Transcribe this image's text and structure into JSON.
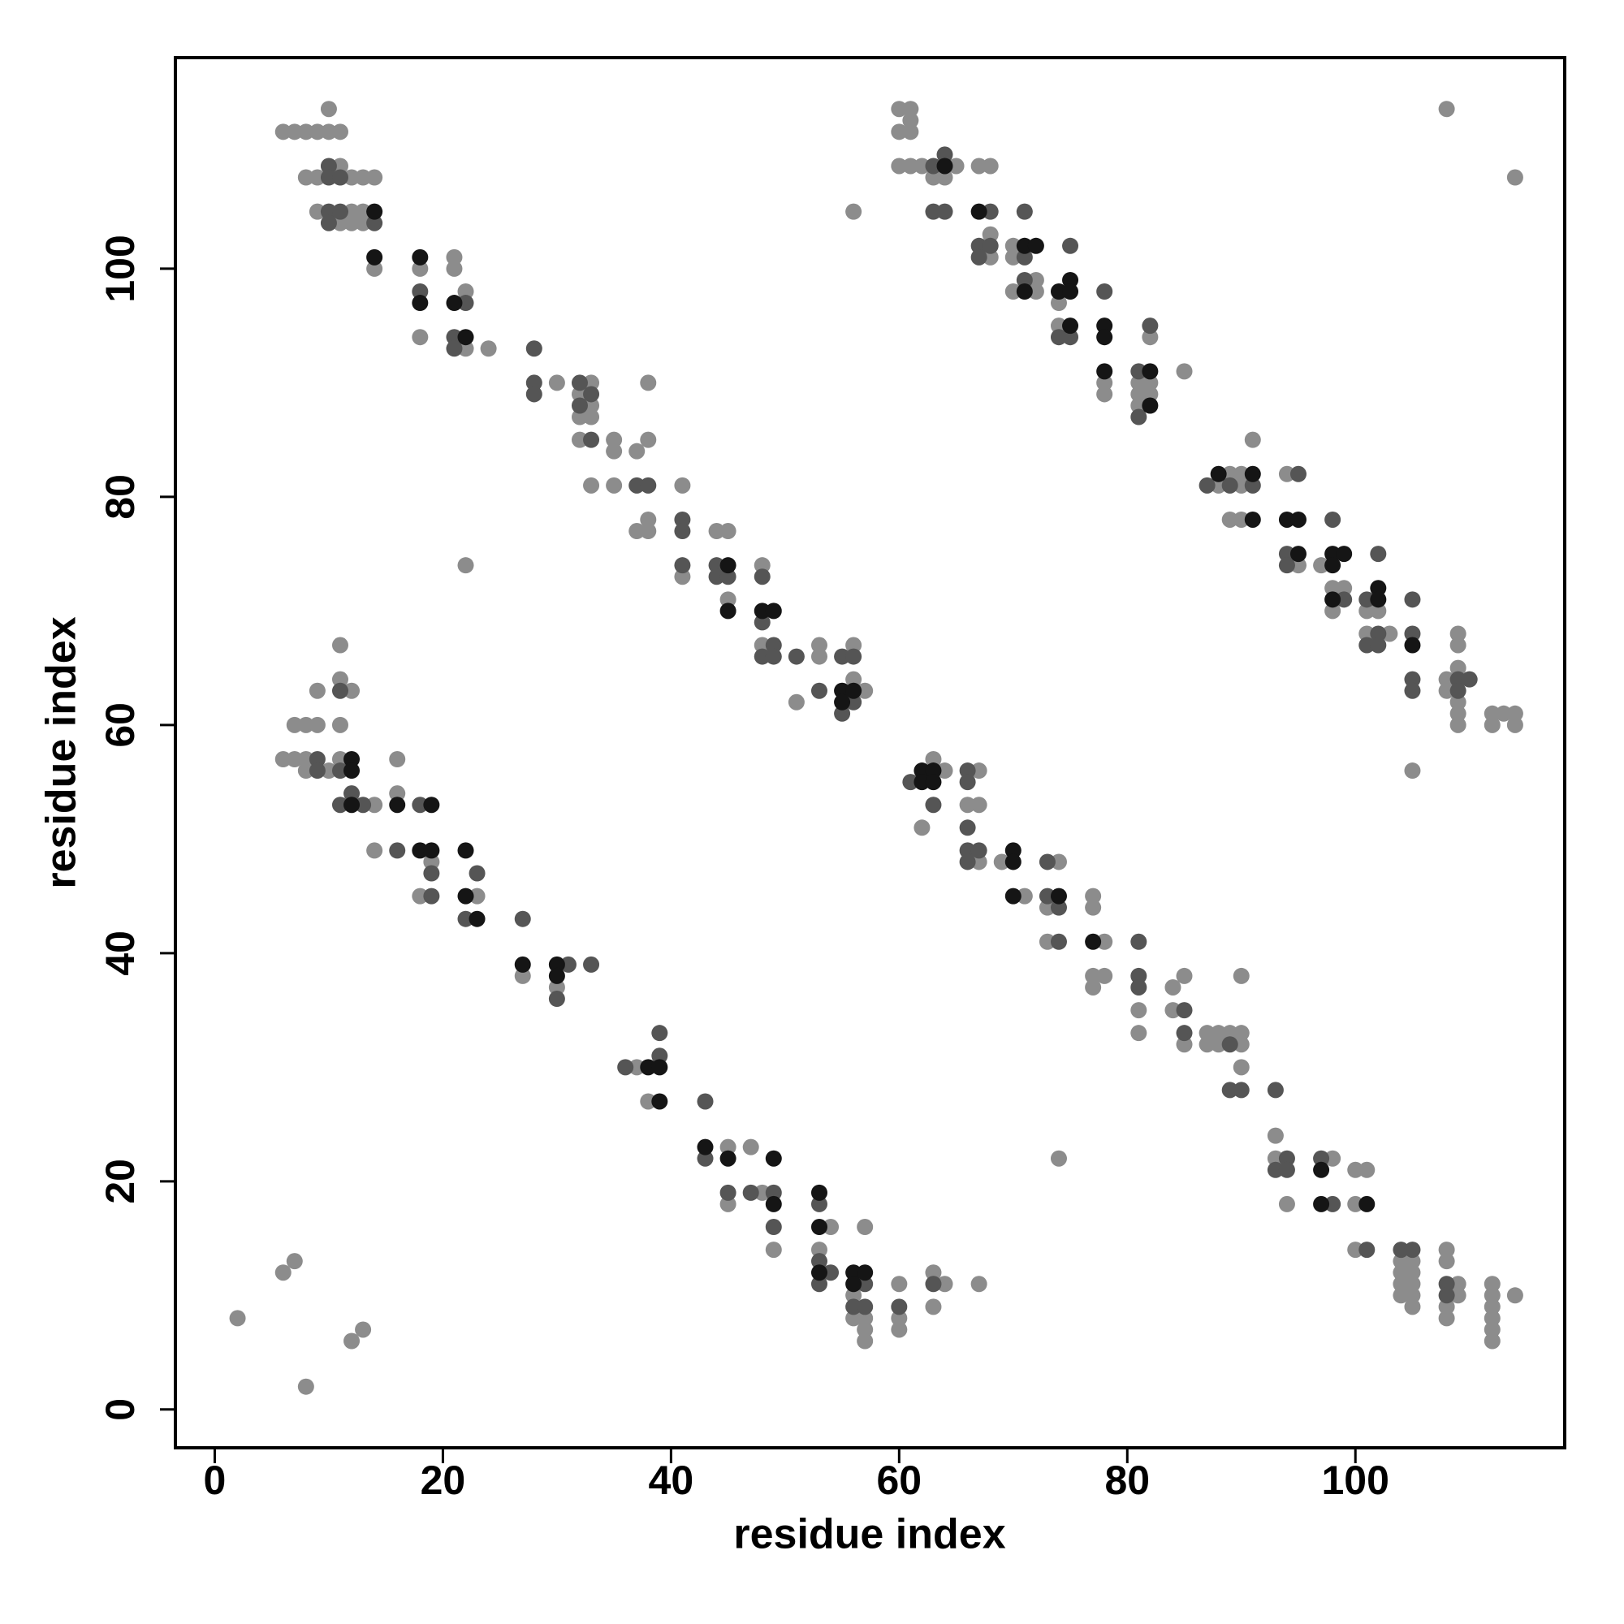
{
  "chart_data": {
    "type": "scatter",
    "xlabel": "residue index",
    "ylabel": "residue index",
    "xlim": [
      -3.45,
      118.35
    ],
    "ylim": [
      -3.36,
      118.5
    ],
    "xticks": [
      0,
      20,
      40,
      60,
      80,
      100
    ],
    "yticks": [
      0,
      20,
      40,
      60,
      80,
      100
    ],
    "series": [
      {
        "color": "#8c8c8c",
        "x": [
          6,
          7,
          8,
          9,
          10,
          11,
          10,
          8,
          9,
          12,
          13,
          14,
          11,
          9,
          12,
          13,
          11,
          12,
          13,
          14,
          18,
          18,
          21,
          21,
          22,
          22,
          24,
          30,
          32,
          32,
          32,
          33,
          33,
          33,
          33,
          35,
          35,
          35,
          37,
          37,
          38,
          38,
          38,
          38,
          41,
          41,
          22,
          44,
          45,
          45,
          48,
          48,
          51,
          53,
          53,
          56,
          56,
          57,
          6,
          7,
          7,
          8,
          8,
          8,
          9,
          9,
          10,
          11,
          11,
          11,
          11,
          12,
          14,
          14,
          16,
          16,
          18,
          19,
          23,
          27,
          30,
          37,
          38,
          45,
          45,
          47,
          48,
          49,
          53,
          54,
          56,
          56,
          57,
          57,
          57,
          57,
          60,
          60,
          60,
          63,
          63,
          64,
          67,
          2,
          6,
          7,
          8,
          12,
          13,
          62,
          63,
          64,
          66,
          67,
          67,
          67,
          69,
          71,
          73,
          73,
          74,
          74,
          77,
          77,
          77,
          77,
          78,
          78,
          81,
          81,
          84,
          84,
          85,
          85,
          87,
          87,
          88,
          88,
          89,
          90,
          90,
          90,
          90,
          93,
          93,
          94,
          98,
          100,
          100,
          100,
          101,
          104,
          104,
          104,
          104,
          105,
          105,
          105,
          105,
          105,
          108,
          108,
          108,
          108,
          109,
          109,
          112,
          112,
          112,
          112,
          112,
          112,
          114,
          60,
          60,
          60,
          61,
          61,
          61,
          61,
          62,
          63,
          64,
          65,
          56,
          67,
          68,
          68,
          68,
          70,
          70,
          70,
          72,
          72,
          74,
          74,
          78,
          78,
          81,
          81,
          81,
          82,
          82,
          82,
          85,
          88,
          89,
          89,
          90,
          90,
          90,
          91,
          94,
          95,
          97,
          98,
          98,
          99,
          101,
          101,
          102,
          103,
          105,
          108,
          108,
          108,
          109,
          109,
          109,
          109,
          109,
          109,
          112,
          112,
          113,
          114,
          114,
          114
        ],
        "values": [
          112,
          112,
          112,
          112,
          112,
          112,
          114,
          108,
          108,
          108,
          108,
          108,
          109,
          105,
          105,
          105,
          104,
          104,
          104,
          100,
          100,
          94,
          101,
          100,
          98,
          93,
          93,
          90,
          89,
          87,
          85,
          90,
          88,
          87,
          81,
          85,
          84,
          81,
          84,
          77,
          90,
          85,
          78,
          77,
          81,
          73,
          74,
          77,
          77,
          71,
          74,
          67,
          62,
          67,
          66,
          67,
          64,
          63,
          57,
          60,
          57,
          60,
          57,
          56,
          63,
          60,
          56,
          67,
          64,
          60,
          57,
          63,
          53,
          49,
          57,
          54,
          45,
          48,
          45,
          38,
          37,
          30,
          27,
          23,
          18,
          23,
          19,
          14,
          14,
          16,
          10,
          8,
          16,
          8,
          7,
          6,
          11,
          8,
          7,
          12,
          9,
          11,
          11,
          8,
          12,
          13,
          2,
          6,
          7,
          51,
          57,
          56,
          53,
          56,
          53,
          48,
          48,
          45,
          44,
          41,
          48,
          22,
          45,
          44,
          38,
          37,
          41,
          38,
          35,
          33,
          37,
          35,
          38,
          32,
          33,
          32,
          33,
          32,
          33,
          38,
          33,
          32,
          30,
          24,
          22,
          18,
          22,
          21,
          18,
          14,
          21,
          13,
          12,
          11,
          10,
          13,
          12,
          11,
          10,
          9,
          14,
          13,
          9,
          8,
          11,
          10,
          11,
          10,
          9,
          8,
          7,
          6,
          10,
          114,
          112,
          109,
          114,
          113,
          112,
          109,
          109,
          108,
          108,
          109,
          105,
          109,
          109,
          103,
          101,
          102,
          101,
          98,
          99,
          98,
          97,
          95,
          90,
          89,
          90,
          89,
          88,
          94,
          90,
          89,
          91,
          81,
          82,
          78,
          82,
          81,
          78,
          85,
          82,
          74,
          74,
          72,
          70,
          72,
          70,
          68,
          70,
          68,
          56,
          64,
          63,
          114,
          68,
          67,
          65,
          62,
          61,
          60,
          61,
          60,
          61,
          61,
          60,
          108
        ]
      },
      {
        "color": "#555555",
        "x": [
          10,
          10,
          11,
          10,
          11,
          10,
          14,
          18,
          21,
          21,
          22,
          28,
          28,
          28,
          32,
          32,
          33,
          33,
          37,
          38,
          41,
          41,
          41,
          44,
          44,
          45,
          48,
          48,
          48,
          49,
          49,
          51,
          53,
          55,
          55,
          56,
          56,
          9,
          9,
          11,
          11,
          11,
          12,
          13,
          16,
          18,
          19,
          19,
          22,
          23,
          27,
          30,
          31,
          33,
          36,
          39,
          39,
          43,
          43,
          45,
          47,
          49,
          49,
          53,
          53,
          53,
          54,
          56,
          57,
          57,
          60,
          63,
          61,
          63,
          66,
          66,
          66,
          66,
          66,
          67,
          73,
          73,
          74,
          74,
          81,
          81,
          81,
          85,
          85,
          89,
          89,
          90,
          93,
          93,
          94,
          94,
          97,
          98,
          101,
          104,
          105,
          108,
          108,
          63,
          63,
          64,
          64,
          67,
          67,
          68,
          68,
          71,
          71,
          71,
          74,
          75,
          75,
          78,
          81,
          81,
          82,
          87,
          89,
          91,
          94,
          94,
          95,
          98,
          99,
          101,
          101,
          102,
          102,
          102,
          105,
          105,
          105,
          105,
          109,
          109,
          110
        ],
        "values": [
          109,
          108,
          108,
          105,
          105,
          104,
          104,
          98,
          94,
          93,
          97,
          93,
          90,
          89,
          90,
          88,
          89,
          85,
          81,
          81,
          78,
          77,
          74,
          74,
          73,
          73,
          73,
          69,
          66,
          67,
          66,
          66,
          63,
          66,
          61,
          66,
          62,
          57,
          56,
          63,
          56,
          53,
          54,
          53,
          49,
          53,
          47,
          45,
          43,
          47,
          43,
          36,
          39,
          39,
          30,
          33,
          31,
          27,
          22,
          19,
          19,
          19,
          16,
          18,
          13,
          11,
          12,
          9,
          11,
          9,
          9,
          11,
          55,
          53,
          56,
          55,
          51,
          49,
          48,
          49,
          48,
          45,
          44,
          41,
          41,
          38,
          37,
          35,
          33,
          32,
          28,
          28,
          28,
          21,
          22,
          21,
          22,
          18,
          14,
          14,
          14,
          11,
          10,
          109,
          105,
          110,
          105,
          102,
          101,
          105,
          102,
          105,
          101,
          99,
          94,
          102,
          94,
          98,
          91,
          87,
          95,
          81,
          81,
          81,
          75,
          74,
          82,
          78,
          71,
          71,
          67,
          75,
          68,
          67,
          71,
          68,
          64,
          63,
          64,
          63,
          64
        ]
      },
      {
        "color": "#151515",
        "x": [
          14,
          14,
          18,
          18,
          21,
          22,
          45,
          45,
          48,
          49,
          55,
          55,
          56,
          12,
          12,
          12,
          16,
          18,
          19,
          19,
          22,
          22,
          23,
          27,
          30,
          30,
          38,
          39,
          39,
          43,
          45,
          49,
          49,
          53,
          53,
          53,
          56,
          56,
          57,
          62,
          62,
          63,
          63,
          70,
          70,
          70,
          74,
          77,
          97,
          97,
          101,
          64,
          67,
          71,
          71,
          72,
          74,
          75,
          75,
          75,
          78,
          78,
          78,
          82,
          82,
          88,
          91,
          91,
          94,
          95,
          95,
          98,
          98,
          98,
          99,
          102,
          102,
          105
        ],
        "values": [
          105,
          101,
          101,
          97,
          97,
          94,
          74,
          70,
          70,
          70,
          63,
          62,
          63,
          57,
          56,
          53,
          53,
          49,
          53,
          49,
          49,
          45,
          43,
          39,
          39,
          38,
          30,
          30,
          27,
          23,
          22,
          22,
          18,
          19,
          16,
          12,
          12,
          11,
          12,
          56,
          55,
          56,
          55,
          49,
          48,
          45,
          45,
          41,
          21,
          18,
          18,
          109,
          105,
          102,
          98,
          102,
          98,
          99,
          98,
          95,
          95,
          94,
          91,
          91,
          88,
          82,
          82,
          78,
          78,
          78,
          75,
          75,
          74,
          71,
          75,
          72,
          71,
          67
        ]
      }
    ]
  }
}
